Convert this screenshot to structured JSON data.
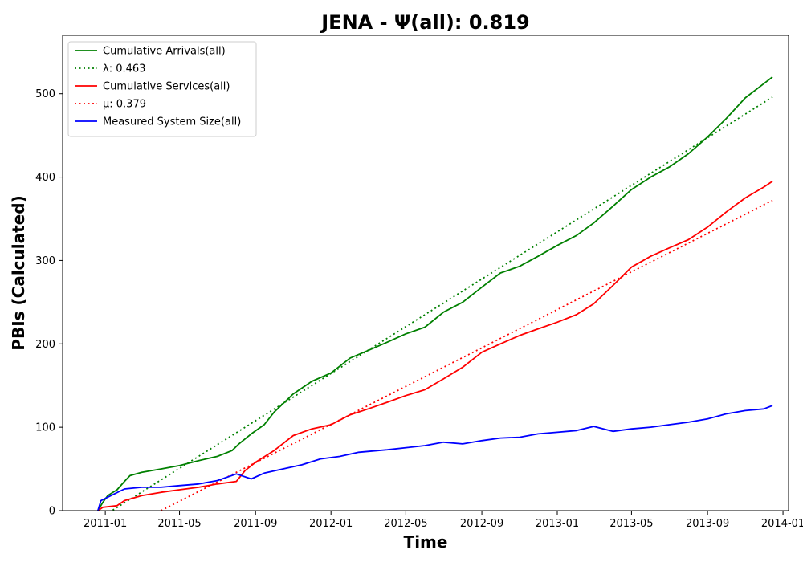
{
  "chart_data": {
    "type": "line",
    "title": "JENA -  Ψ(all): 0.819",
    "xlabel": "Time",
    "ylabel": "PBIs (Calculated)",
    "xlim": [
      "2010-10-24",
      "2014-01-10"
    ],
    "ylim": [
      0,
      570
    ],
    "x_ticks": [
      "2011-01",
      "2011-05",
      "2011-09",
      "2012-01",
      "2012-05",
      "2012-09",
      "2013-01",
      "2013-05",
      "2013-09",
      "2014-01"
    ],
    "y_ticks": [
      0,
      100,
      200,
      300,
      400,
      500
    ],
    "grid": false,
    "legend_position": "top-left",
    "series": [
      {
        "name": "Cumulative Arrivals(all)",
        "color": "#008000",
        "style": "solid",
        "points": [
          [
            "2010-12-20",
            0
          ],
          [
            "2010-12-28",
            10
          ],
          [
            "2011-01-05",
            18
          ],
          [
            "2011-01-20",
            25
          ],
          [
            "2011-02-01",
            35
          ],
          [
            "2011-02-10",
            42
          ],
          [
            "2011-03-01",
            46
          ],
          [
            "2011-04-01",
            50
          ],
          [
            "2011-05-01",
            54
          ],
          [
            "2011-06-01",
            60
          ],
          [
            "2011-07-01",
            65
          ],
          [
            "2011-07-25",
            72
          ],
          [
            "2011-08-05",
            80
          ],
          [
            "2011-08-25",
            92
          ],
          [
            "2011-09-15",
            103
          ],
          [
            "2011-10-01",
            118
          ],
          [
            "2011-11-01",
            140
          ],
          [
            "2011-12-01",
            155
          ],
          [
            "2012-01-01",
            165
          ],
          [
            "2012-02-01",
            183
          ],
          [
            "2012-03-01",
            192
          ],
          [
            "2012-04-01",
            202
          ],
          [
            "2012-05-01",
            212
          ],
          [
            "2012-06-01",
            220
          ],
          [
            "2012-07-01",
            238
          ],
          [
            "2012-08-01",
            250
          ],
          [
            "2012-09-01",
            268
          ],
          [
            "2012-10-01",
            285
          ],
          [
            "2012-11-01",
            293
          ],
          [
            "2012-12-01",
            305
          ],
          [
            "2013-01-01",
            318
          ],
          [
            "2013-02-01",
            330
          ],
          [
            "2013-03-01",
            345
          ],
          [
            "2013-04-01",
            365
          ],
          [
            "2013-05-01",
            385
          ],
          [
            "2013-06-01",
            400
          ],
          [
            "2013-07-01",
            412
          ],
          [
            "2013-08-01",
            428
          ],
          [
            "2013-09-01",
            448
          ],
          [
            "2013-10-01",
            470
          ],
          [
            "2013-11-01",
            495
          ],
          [
            "2013-12-01",
            512
          ],
          [
            "2013-12-15",
            520
          ]
        ]
      },
      {
        "name": "λ: 0.463",
        "color": "#008000",
        "style": "dotted",
        "points": [
          [
            "2011-01-01",
            -5
          ],
          [
            "2013-12-15",
            496
          ]
        ]
      },
      {
        "name": "Cumulative Services(all)",
        "color": "#ff0000",
        "style": "solid",
        "points": [
          [
            "2010-12-20",
            0
          ],
          [
            "2010-12-28",
            4
          ],
          [
            "2011-01-20",
            6
          ],
          [
            "2011-02-01",
            12
          ],
          [
            "2011-03-01",
            18
          ],
          [
            "2011-04-01",
            22
          ],
          [
            "2011-05-01",
            25
          ],
          [
            "2011-06-01",
            28
          ],
          [
            "2011-07-01",
            32
          ],
          [
            "2011-08-01",
            35
          ],
          [
            "2011-08-15",
            48
          ],
          [
            "2011-09-01",
            58
          ],
          [
            "2011-10-01",
            72
          ],
          [
            "2011-11-01",
            90
          ],
          [
            "2011-12-01",
            98
          ],
          [
            "2012-01-01",
            103
          ],
          [
            "2012-02-01",
            115
          ],
          [
            "2012-03-01",
            122
          ],
          [
            "2012-04-01",
            130
          ],
          [
            "2012-05-01",
            138
          ],
          [
            "2012-06-01",
            145
          ],
          [
            "2012-07-01",
            158
          ],
          [
            "2012-08-01",
            172
          ],
          [
            "2012-09-01",
            190
          ],
          [
            "2012-10-01",
            200
          ],
          [
            "2012-11-01",
            210
          ],
          [
            "2012-12-01",
            218
          ],
          [
            "2013-01-01",
            226
          ],
          [
            "2013-02-01",
            235
          ],
          [
            "2013-03-01",
            248
          ],
          [
            "2013-04-01",
            270
          ],
          [
            "2013-05-01",
            292
          ],
          [
            "2013-06-01",
            305
          ],
          [
            "2013-07-01",
            315
          ],
          [
            "2013-08-01",
            325
          ],
          [
            "2013-09-01",
            340
          ],
          [
            "2013-10-01",
            358
          ],
          [
            "2013-11-01",
            375
          ],
          [
            "2013-12-01",
            388
          ],
          [
            "2013-12-15",
            395
          ]
        ]
      },
      {
        "name": "μ: 0.379",
        "color": "#ff0000",
        "style": "dotted",
        "points": [
          [
            "2011-04-01",
            0
          ],
          [
            "2013-12-15",
            372
          ]
        ]
      },
      {
        "name": "Measured System Size(all)",
        "color": "#0000ff",
        "style": "solid",
        "points": [
          [
            "2010-12-20",
            0
          ],
          [
            "2010-12-25",
            12
          ],
          [
            "2011-01-10",
            18
          ],
          [
            "2011-02-01",
            26
          ],
          [
            "2011-03-01",
            28
          ],
          [
            "2011-04-01",
            28
          ],
          [
            "2011-05-01",
            30
          ],
          [
            "2011-06-01",
            32
          ],
          [
            "2011-07-01",
            36
          ],
          [
            "2011-08-01",
            44
          ],
          [
            "2011-08-25",
            38
          ],
          [
            "2011-09-15",
            45
          ],
          [
            "2011-10-15",
            50
          ],
          [
            "2011-11-15",
            55
          ],
          [
            "2011-12-15",
            62
          ],
          [
            "2012-01-15",
            65
          ],
          [
            "2012-02-15",
            70
          ],
          [
            "2012-04-01",
            73
          ],
          [
            "2012-06-01",
            78
          ],
          [
            "2012-07-01",
            82
          ],
          [
            "2012-08-01",
            80
          ],
          [
            "2012-09-01",
            84
          ],
          [
            "2012-10-01",
            87
          ],
          [
            "2012-11-01",
            88
          ],
          [
            "2012-12-01",
            92
          ],
          [
            "2013-01-01",
            94
          ],
          [
            "2013-02-01",
            96
          ],
          [
            "2013-03-01",
            101
          ],
          [
            "2013-04-01",
            95
          ],
          [
            "2013-05-01",
            98
          ],
          [
            "2013-06-01",
            100
          ],
          [
            "2013-07-01",
            103
          ],
          [
            "2013-08-01",
            106
          ],
          [
            "2013-09-01",
            110
          ],
          [
            "2013-10-01",
            116
          ],
          [
            "2013-11-01",
            120
          ],
          [
            "2013-12-01",
            122
          ],
          [
            "2013-12-15",
            126
          ]
        ]
      }
    ]
  }
}
